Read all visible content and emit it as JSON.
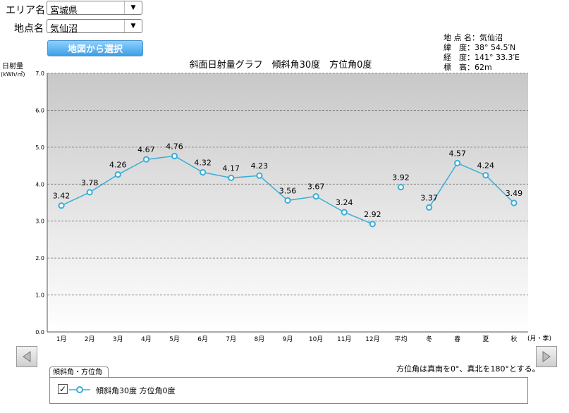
{
  "controls": {
    "area_label": "エリア名",
    "area_value": "宮城県",
    "point_label": "地点名",
    "point_value": "気仙沼",
    "map_button": "地図から選択"
  },
  "location": {
    "name_label": "地 点 名",
    "name_value": "気仙沼",
    "lat_label": "緯　度",
    "lat_value": "38° 54.5′N",
    "lon_label": "経　度",
    "lon_value": "141° 33.3′E",
    "alt_label": "標　高",
    "alt_value": "62m"
  },
  "note": "方位角は真南を0°、真北を180°とする。",
  "legend": {
    "tab_label": "傾斜角・方位角",
    "series_label": "傾斜角30度 方位角0度",
    "checked": true
  },
  "colors": {
    "series": "#3aaed8",
    "plot_top": "#c8c8c8",
    "plot_bottom": "#ffffff"
  },
  "chart_data": {
    "type": "line",
    "title": "斜面日射量グラフ　傾斜角30度　方位角0度",
    "ylabel": "日射量",
    "yunit": "(kWh/㎡)",
    "xunit": "(月・季)",
    "ylim": [
      0,
      7
    ],
    "yticks": [
      "0.0",
      "1.0",
      "2.0",
      "3.0",
      "4.0",
      "5.0",
      "6.0",
      "7.0"
    ],
    "grid": true,
    "categories": [
      "1月",
      "2月",
      "3月",
      "4月",
      "5月",
      "6月",
      "7月",
      "8月",
      "9月",
      "10月",
      "11月",
      "12月",
      "平均",
      "冬",
      "春",
      "夏",
      "秋"
    ],
    "series": [
      {
        "name": "傾斜角30度 方位角0度",
        "values": [
          3.42,
          3.78,
          4.26,
          4.67,
          4.76,
          4.32,
          4.17,
          4.23,
          3.56,
          3.67,
          3.24,
          2.92,
          3.92,
          3.37,
          4.57,
          4.24,
          3.49
        ],
        "labels": [
          "3.42",
          "3.78",
          "4.26",
          "4.67",
          "4.76",
          "4.32",
          "4.17",
          "4.23",
          "3.56",
          "3.67",
          "3.24",
          "2.92",
          "3.92",
          "3.37",
          "4.57",
          "4.24",
          "3.49"
        ],
        "segments": [
          [
            0,
            11
          ],
          [
            12,
            12
          ],
          [
            13,
            16
          ]
        ]
      }
    ]
  }
}
